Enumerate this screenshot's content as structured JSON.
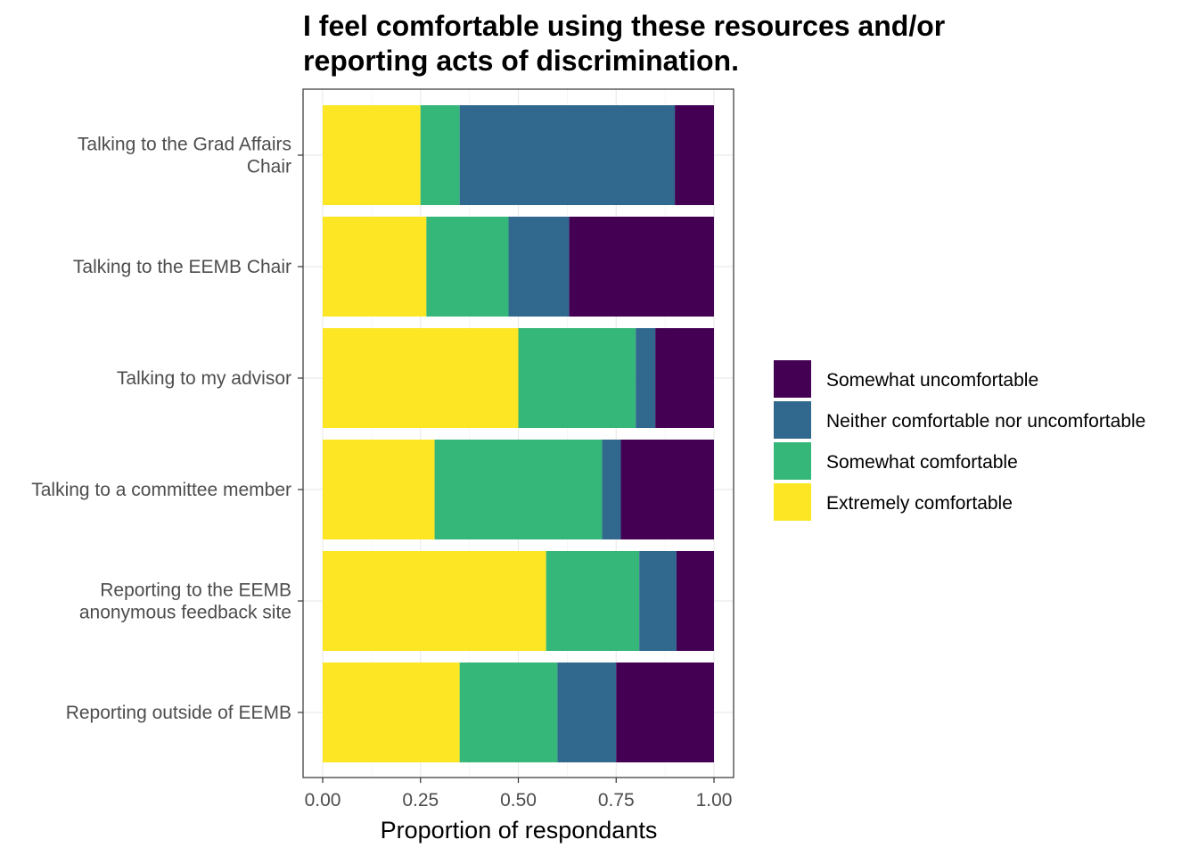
{
  "chart_data": {
    "type": "bar",
    "orientation": "horizontal",
    "stacked": true,
    "title": "I feel comfortable using these resources and/or reporting acts of discrimination.",
    "title_lines": [
      "I feel comfortable using these resources and/or",
      "reporting acts of discrimination."
    ],
    "xlabel": "Proportion of respondants",
    "ylabel": "",
    "xlim": [
      0,
      1
    ],
    "xticks": [
      0,
      0.25,
      0.5,
      0.75,
      1
    ],
    "xtick_labels": [
      "0.00",
      "0.25",
      "0.50",
      "0.75",
      "1.00"
    ],
    "grid": true,
    "legend_position": "right",
    "categories": [
      "Talking to the Grad Affairs Chair",
      "Talking to the EEMB Chair",
      "Talking to my advisor",
      "Talking to a committee member",
      "Reporting to the EEMB anonymous feedback site",
      "Reporting outside of EEMB"
    ],
    "category_label_lines": [
      [
        "Talking to the Grad Affairs",
        "Chair"
      ],
      [
        "Talking to the EEMB Chair"
      ],
      [
        "Talking to my advisor"
      ],
      [
        "Talking to a committee member"
      ],
      [
        "Reporting to the EEMB",
        "anonymous feedback site"
      ],
      [
        "Reporting outside of EEMB"
      ]
    ],
    "series": [
      {
        "name": "Extremely comfortable",
        "color": "#FDE725",
        "values": [
          0.25,
          0.265,
          0.5,
          0.286,
          0.571,
          0.35
        ]
      },
      {
        "name": "Somewhat comfortable",
        "color": "#35B779",
        "values": [
          0.1,
          0.21,
          0.3,
          0.428,
          0.238,
          0.25
        ]
      },
      {
        "name": "Neither comfortable nor uncomfortable",
        "color": "#31688E",
        "values": [
          0.55,
          0.155,
          0.05,
          0.048,
          0.095,
          0.15
        ]
      },
      {
        "name": "Somewhat uncomfortable",
        "color": "#440154",
        "values": [
          0.1,
          0.37,
          0.15,
          0.238,
          0.096,
          0.25
        ]
      }
    ],
    "legend_order": [
      "Somewhat uncomfortable",
      "Neither comfortable nor uncomfortable",
      "Somewhat comfortable",
      "Extremely comfortable"
    ]
  }
}
